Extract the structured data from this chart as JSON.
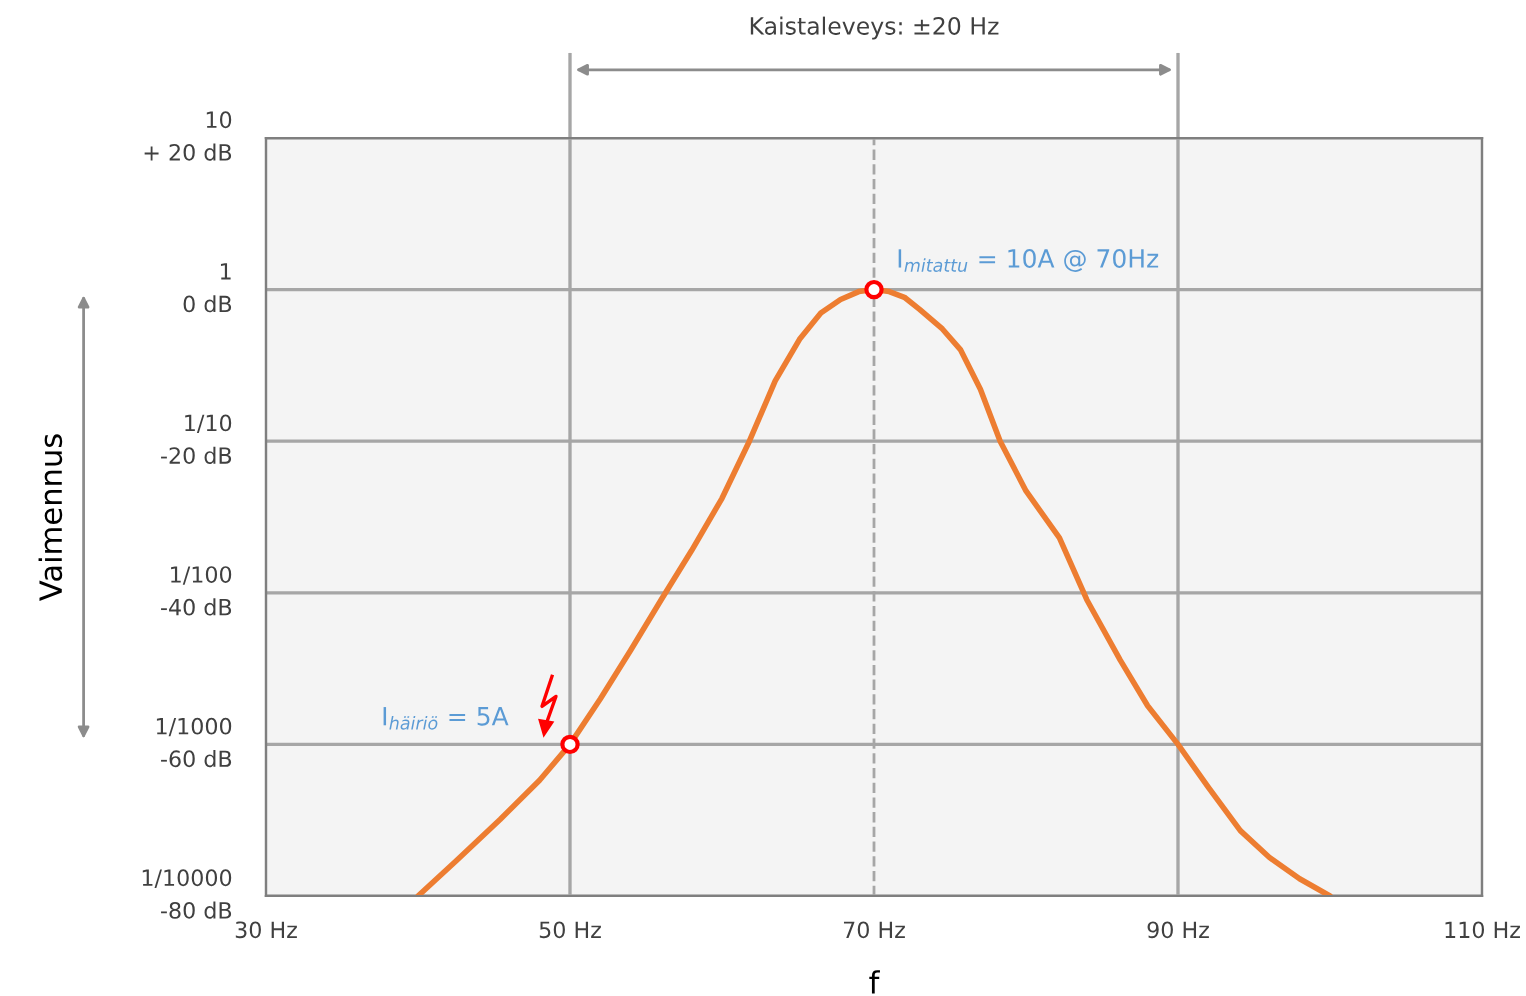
{
  "chart_data": {
    "type": "line",
    "xlabel": "f",
    "ylabel": "Vaimennus",
    "log": "y",
    "xlim": [
      30,
      110
    ],
    "xticks": [
      {
        "value": 30,
        "label": "30 Hz"
      },
      {
        "value": 50,
        "label": "50 Hz"
      },
      {
        "value": 70,
        "label": "70 Hz"
      },
      {
        "value": 90,
        "label": "90 Hz"
      },
      {
        "value": 110,
        "label": "110 Hz"
      }
    ],
    "ylim": [
      0.0001,
      10
    ],
    "yticks": [
      10,
      1,
      {
        "value": 0.1,
        "label": "1/10"
      },
      {
        "value": 0.01,
        "label": "1/100"
      },
      {
        "value": 0.001,
        "label": "1/1000"
      },
      {
        "value": 0.0001,
        "label": "1/10000"
      }
    ],
    "y2lim": [
      -80,
      20
    ],
    "y2ticks": [
      {
        "value": 20,
        "label": "+ 20 dB"
      },
      {
        "value": 0,
        "label": "0 dB"
      },
      {
        "value": -20,
        "label": "-20 dB"
      },
      {
        "value": -40,
        "label": "-40 dB"
      },
      {
        "value": -60,
        "label": "-60 dB"
      },
      {
        "value": -80,
        "label": "-80 dB"
      }
    ],
    "grid": "y",
    "line_style": "solid",
    "marker": "none",
    "series": [
      {
        "color": "#ed7d31",
        "x": [
          40,
          42.5,
          45.4,
          48,
          50,
          52,
          54,
          56,
          58,
          60,
          61.8,
          63.5,
          65.1,
          66.5,
          67.8,
          69,
          70,
          71,
          72,
          73,
          74.5,
          75.7,
          77,
          78.3,
          80,
          82.2,
          84,
          86.2,
          88,
          90,
          92,
          94.1,
          96,
          98,
          100
        ],
        "values": [
          0.0001,
          0.00017,
          0.00032,
          0.00058,
          0.001,
          0.002,
          0.0042,
          0.009,
          0.019,
          0.042,
          0.1,
          0.25,
          0.47,
          0.7,
          0.86,
          0.97,
          1,
          0.97,
          0.89,
          0.74,
          0.55,
          0.4,
          0.22,
          0.1,
          0.047,
          0.023,
          0.009,
          0.0036,
          0.0018,
          0.001,
          0.00052,
          0.00027,
          0.00018,
          0.00013,
          0.0001
        ]
      },
      {
        "type": "scatter",
        "marker": "circle",
        "color": "#ff0000",
        "x": [
          50,
          70
        ],
        "values": [
          0.001,
          1
        ]
      }
    ],
    "ref_lines": [
      {
        "axis": "x",
        "value": 50,
        "color": "#a6a6a6",
        "line_style": "solid"
      },
      {
        "axis": "x",
        "value": 70,
        "color": "#a6a6a6",
        "line_style": "dashed"
      },
      {
        "axis": "x",
        "value": 90,
        "color": "#a6a6a6",
        "line_style": "solid"
      }
    ],
    "annotations": [
      "Kaistaleveys: ±20 Hz",
      {
        "text": "I$_{mitattu}$ = 10A @ 70Hz",
        "x": 70,
        "y": 1
      },
      {
        "text": "I$_{häiriö}$ = 5A",
        "x": 50,
        "y": 0.001
      }
    ]
  }
}
